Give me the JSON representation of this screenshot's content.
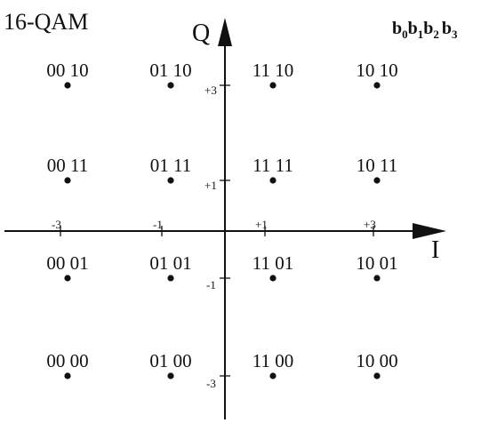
{
  "title": "16-QAM",
  "axes": {
    "x_label": "I",
    "y_label": "Q",
    "x_tick_labels": [
      "-3",
      "-1",
      "+1",
      "+3"
    ],
    "y_tick_labels": [
      "+3",
      "+1",
      "-1",
      "-3"
    ]
  },
  "bit_order": {
    "parts": [
      {
        "b": "b",
        "sub": "0"
      },
      {
        "b": "b",
        "sub": "1"
      },
      {
        "b": "b",
        "sub": "2"
      },
      {
        "b": "b",
        "sub": "3"
      }
    ]
  },
  "constellation": [
    {
      "i": -3,
      "q": 3,
      "label": "00 10"
    },
    {
      "i": -1,
      "q": 3,
      "label": "01 10"
    },
    {
      "i": 1,
      "q": 3,
      "label": "11 10"
    },
    {
      "i": 3,
      "q": 3,
      "label": "10 10"
    },
    {
      "i": -3,
      "q": 1,
      "label": "00 11"
    },
    {
      "i": -1,
      "q": 1,
      "label": "01 11"
    },
    {
      "i": 1,
      "q": 1,
      "label": "11 11"
    },
    {
      "i": 3,
      "q": 1,
      "label": "10 11"
    },
    {
      "i": -3,
      "q": -1,
      "label": "00 01"
    },
    {
      "i": -1,
      "q": -1,
      "label": "01 01"
    },
    {
      "i": 1,
      "q": -1,
      "label": "11 01"
    },
    {
      "i": 3,
      "q": -1,
      "label": "10 01"
    },
    {
      "i": -3,
      "q": -3,
      "label": "00 00"
    },
    {
      "i": -1,
      "q": -3,
      "label": "01 00"
    },
    {
      "i": 1,
      "q": -3,
      "label": "11 00"
    },
    {
      "i": 3,
      "q": -3,
      "label": "10 00"
    }
  ]
}
